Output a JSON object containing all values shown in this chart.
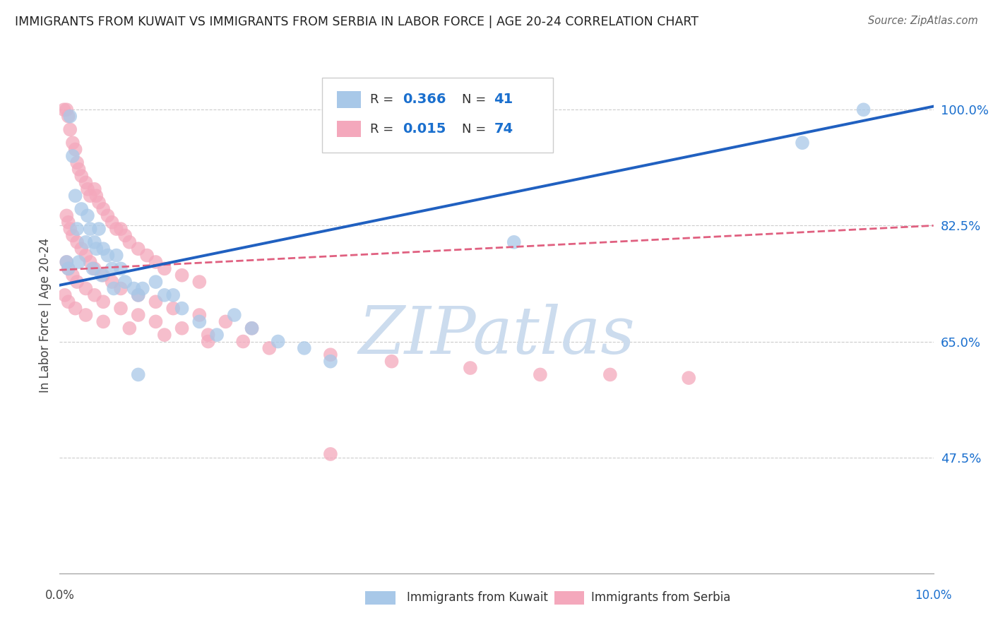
{
  "title": "IMMIGRANTS FROM KUWAIT VS IMMIGRANTS FROM SERBIA IN LABOR FORCE | AGE 20-24 CORRELATION CHART",
  "source": "Source: ZipAtlas.com",
  "ylabel": "In Labor Force | Age 20-24",
  "y_tick_labels": [
    "47.5%",
    "65.0%",
    "82.5%",
    "100.0%"
  ],
  "y_tick_values": [
    0.475,
    0.65,
    0.825,
    1.0
  ],
  "xlim": [
    0.0,
    0.1
  ],
  "ylim": [
    0.3,
    1.08
  ],
  "legend_label_kuwait": "Immigrants from Kuwait",
  "legend_label_serbia": "Immigrants from Serbia",
  "kuwait_color": "#a8c8e8",
  "serbia_color": "#f4a8bc",
  "trend_kuwait_color": "#2060c0",
  "trend_serbia_color": "#e06080",
  "axis_color": "#1a6fce",
  "watermark_text": "ZIPatlas",
  "watermark_color": "#ccdcee",
  "kuwait_trendline_x": [
    0.0,
    0.1
  ],
  "kuwait_trendline_y": [
    0.735,
    1.005
  ],
  "serbia_trendline_x": [
    0.0,
    0.1
  ],
  "serbia_trendline_y": [
    0.758,
    0.825
  ],
  "kuwait_x": [
    0.0008,
    0.0012,
    0.0015,
    0.0018,
    0.002,
    0.0025,
    0.003,
    0.0032,
    0.0035,
    0.004,
    0.0042,
    0.0045,
    0.005,
    0.0055,
    0.006,
    0.0065,
    0.007,
    0.0075,
    0.0085,
    0.009,
    0.0095,
    0.011,
    0.012,
    0.013,
    0.014,
    0.016,
    0.018,
    0.02,
    0.022,
    0.025,
    0.028,
    0.031,
    0.001,
    0.0022,
    0.0038,
    0.0048,
    0.0062,
    0.009,
    0.052,
    0.085,
    0.092
  ],
  "kuwait_y": [
    0.77,
    0.99,
    0.93,
    0.87,
    0.82,
    0.85,
    0.8,
    0.84,
    0.82,
    0.8,
    0.79,
    0.82,
    0.79,
    0.78,
    0.76,
    0.78,
    0.76,
    0.74,
    0.73,
    0.72,
    0.73,
    0.74,
    0.72,
    0.72,
    0.7,
    0.68,
    0.66,
    0.69,
    0.67,
    0.65,
    0.64,
    0.62,
    0.76,
    0.77,
    0.76,
    0.75,
    0.73,
    0.6,
    0.8,
    0.95,
    1.0
  ],
  "serbia_x": [
    0.0005,
    0.0008,
    0.001,
    0.0012,
    0.0015,
    0.0018,
    0.002,
    0.0022,
    0.0025,
    0.003,
    0.0032,
    0.0035,
    0.004,
    0.0042,
    0.0045,
    0.005,
    0.0055,
    0.006,
    0.0065,
    0.007,
    0.0075,
    0.008,
    0.009,
    0.01,
    0.011,
    0.012,
    0.014,
    0.016,
    0.0008,
    0.001,
    0.0012,
    0.0015,
    0.002,
    0.0025,
    0.003,
    0.0035,
    0.004,
    0.005,
    0.006,
    0.007,
    0.009,
    0.011,
    0.013,
    0.016,
    0.019,
    0.022,
    0.0008,
    0.001,
    0.0015,
    0.002,
    0.003,
    0.004,
    0.005,
    0.007,
    0.009,
    0.011,
    0.014,
    0.017,
    0.021,
    0.0006,
    0.001,
    0.0018,
    0.003,
    0.005,
    0.008,
    0.012,
    0.017,
    0.024,
    0.031,
    0.038,
    0.047,
    0.055,
    0.063,
    0.072,
    0.031
  ],
  "serbia_y": [
    1.0,
    1.0,
    0.99,
    0.97,
    0.95,
    0.94,
    0.92,
    0.91,
    0.9,
    0.89,
    0.88,
    0.87,
    0.88,
    0.87,
    0.86,
    0.85,
    0.84,
    0.83,
    0.82,
    0.82,
    0.81,
    0.8,
    0.79,
    0.78,
    0.77,
    0.76,
    0.75,
    0.74,
    0.84,
    0.83,
    0.82,
    0.81,
    0.8,
    0.79,
    0.78,
    0.77,
    0.76,
    0.75,
    0.74,
    0.73,
    0.72,
    0.71,
    0.7,
    0.69,
    0.68,
    0.67,
    0.77,
    0.76,
    0.75,
    0.74,
    0.73,
    0.72,
    0.71,
    0.7,
    0.69,
    0.68,
    0.67,
    0.66,
    0.65,
    0.72,
    0.71,
    0.7,
    0.69,
    0.68,
    0.67,
    0.66,
    0.65,
    0.64,
    0.63,
    0.62,
    0.61,
    0.6,
    0.6,
    0.595,
    0.48
  ]
}
